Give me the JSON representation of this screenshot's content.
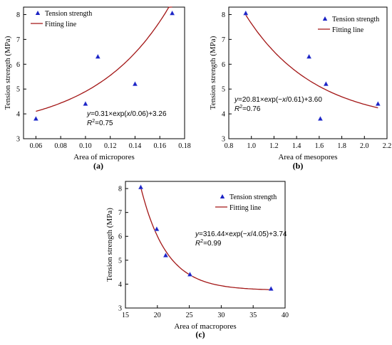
{
  "chart_data": [
    {
      "type": "scatter",
      "panel_label": "(a)",
      "xlabel": "Area of micropores",
      "ylabel": "Tension strength (MPa)",
      "xlim": [
        0.05,
        0.18
      ],
      "ylim": [
        3,
        8.3
      ],
      "xticks": [
        0.06,
        0.08,
        0.1,
        0.12,
        0.14,
        0.16,
        0.18
      ],
      "xtick_labels": [
        "0.06",
        "0.08",
        "0.10",
        "0.12",
        "0.14",
        "0.16",
        "0.18"
      ],
      "yticks": [
        3,
        4,
        5,
        6,
        7,
        8
      ],
      "ytick_labels": [
        "3",
        "4",
        "5",
        "6",
        "7",
        "8"
      ],
      "legend": {
        "position": "top-left",
        "entries": [
          "Tension strength",
          "Fitting line"
        ]
      },
      "series": [
        {
          "name": "Tension strength",
          "kind": "points",
          "x": [
            0.06,
            0.1,
            0.11,
            0.14,
            0.17
          ],
          "y": [
            3.8,
            4.4,
            6.3,
            5.2,
            8.05
          ]
        },
        {
          "name": "Fitting line",
          "kind": "curve",
          "fit": {
            "a": 0.31,
            "t": 0.06,
            "c": 3.26,
            "sign": 1
          },
          "x_range": [
            0.06,
            0.17
          ]
        }
      ],
      "annotation": {
        "equation": "y=0.31×exp(x/0.06)+3.26",
        "r2_label": "R2=0.75",
        "r2_value": "0.75"
      },
      "colors": {
        "points": "#1b22c4",
        "line": "#a31616"
      }
    },
    {
      "type": "scatter",
      "panel_label": "(b)",
      "xlabel": "Area of mesopores",
      "ylabel": "Tension strength (MPa)",
      "xlim": [
        0.8,
        2.2
      ],
      "ylim": [
        3,
        8.3
      ],
      "xticks": [
        0.8,
        1.0,
        1.2,
        1.4,
        1.6,
        1.8,
        2.0,
        2.2
      ],
      "xtick_labels": [
        "0.8",
        "1.0",
        "1.2",
        "1.4",
        "1.6",
        "1.8",
        "2.0",
        "2.2"
      ],
      "yticks": [
        3,
        4,
        5,
        6,
        7,
        8
      ],
      "ytick_labels": [
        "3",
        "4",
        "5",
        "6",
        "7",
        "8"
      ],
      "legend": {
        "position": "top-right",
        "entries": [
          "Tension strength",
          "Fitting line"
        ]
      },
      "series": [
        {
          "name": "Tension strength",
          "kind": "points",
          "x": [
            0.95,
            1.51,
            1.61,
            1.66,
            2.12
          ],
          "y": [
            8.05,
            6.3,
            3.8,
            5.2,
            4.4
          ]
        },
        {
          "name": "Fitting line",
          "kind": "curve",
          "fit": {
            "a": 20.81,
            "t": 0.61,
            "c": 3.6,
            "sign": -1
          },
          "x_range": [
            0.95,
            2.12
          ]
        }
      ],
      "annotation": {
        "equation": "y=20.81×exp(−x/0.61)+3.60",
        "r2_label": "R2=0.76",
        "r2_value": "0.76"
      },
      "colors": {
        "points": "#1b22c4",
        "line": "#a31616"
      }
    },
    {
      "type": "scatter",
      "panel_label": "(c)",
      "xlabel": "Area of macropores",
      "ylabel": "Tension strength (MPa)",
      "xlim": [
        15,
        40
      ],
      "ylim": [
        3,
        8.3
      ],
      "xticks": [
        15,
        20,
        25,
        30,
        35,
        40
      ],
      "xtick_labels": [
        "15",
        "20",
        "25",
        "30",
        "35",
        "40"
      ],
      "yticks": [
        3,
        4,
        5,
        6,
        7,
        8
      ],
      "ytick_labels": [
        "3",
        "4",
        "5",
        "6",
        "7",
        "8"
      ],
      "legend": {
        "position": "top-center",
        "entries": [
          "Tension strength",
          "Fitting line"
        ]
      },
      "series": [
        {
          "name": "Tension strength",
          "kind": "points",
          "x": [
            17.4,
            19.9,
            21.3,
            25.1,
            37.8
          ],
          "y": [
            8.05,
            6.3,
            5.2,
            4.4,
            3.8
          ]
        },
        {
          "name": "Fitting line",
          "kind": "curve",
          "fit": {
            "a": 316.44,
            "t": 4.05,
            "c": 3.74,
            "sign": -1
          },
          "x_range": [
            17.4,
            37.8
          ]
        }
      ],
      "annotation": {
        "equation": "y=316.44×exp(−x/4.05)+3.74",
        "r2_label": "R2=0.99",
        "r2_value": "0.99"
      },
      "colors": {
        "points": "#1b22c4",
        "line": "#a31616"
      }
    }
  ]
}
